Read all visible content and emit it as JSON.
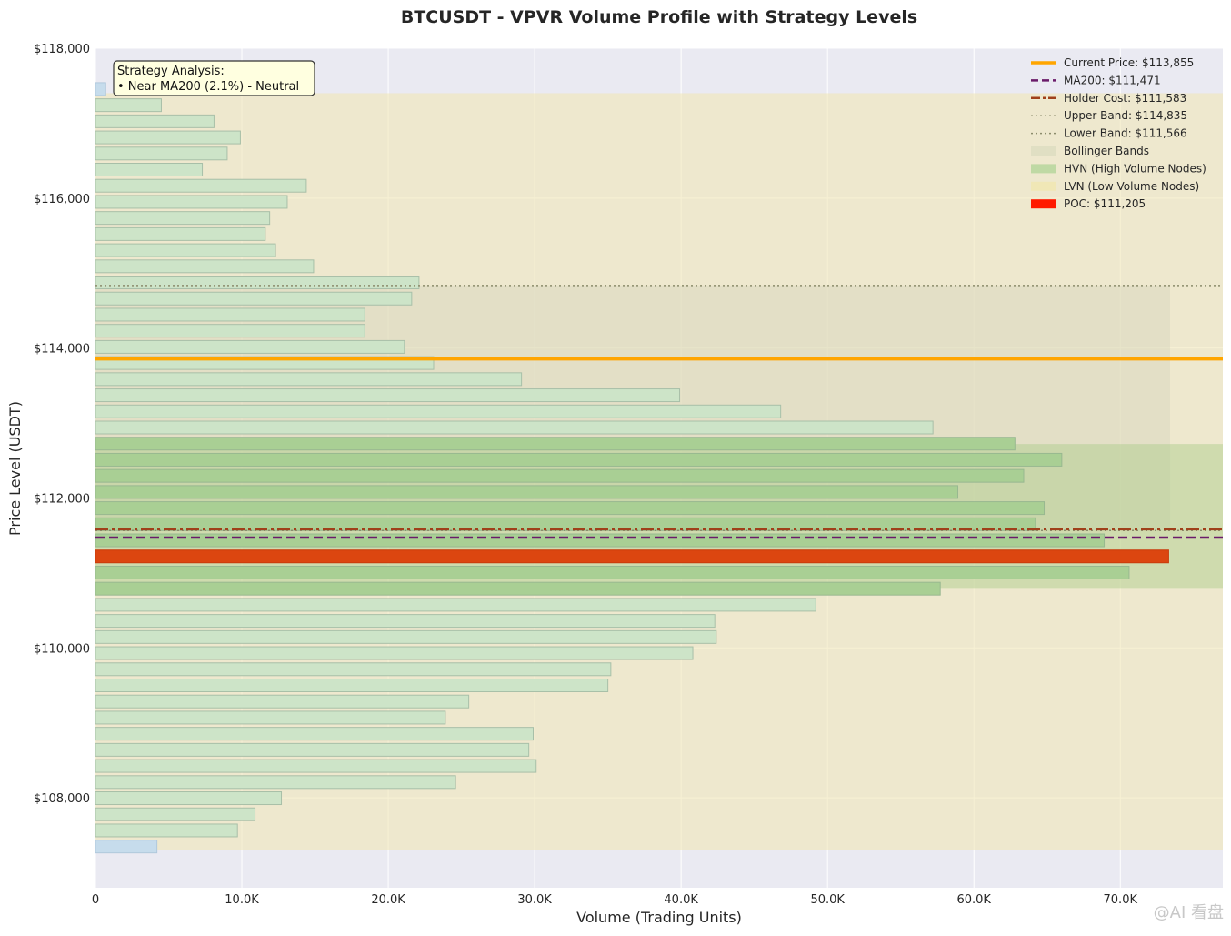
{
  "chart_data": {
    "type": "bar",
    "orientation": "horizontal",
    "title": "BTCUSDT - VPVR Volume Profile with Strategy Levels",
    "xlabel": "Volume (Trading Units)",
    "ylabel": "Price Level (USDT)",
    "xlim": [
      0,
      77000
    ],
    "ylim": [
      106800,
      118000
    ],
    "xticks": [
      0,
      10000,
      20000,
      30000,
      40000,
      50000,
      60000,
      70000
    ],
    "xtick_labels": [
      "0",
      "10.0K",
      "20.0K",
      "30.0K",
      "40.0K",
      "50.0K",
      "60.0K",
      "70.0K"
    ],
    "yticks": [
      108000,
      110000,
      112000,
      114000,
      116000,
      118000
    ],
    "ytick_labels": [
      "$108,000",
      "$110,000",
      "$112,000",
      "$114,000",
      "$116,000",
      "$118,000"
    ],
    "grid": true,
    "legend_position": "top-right",
    "bins": [
      {
        "price": 107350,
        "volume": 4200,
        "kind": "lvn"
      },
      {
        "price": 107565,
        "volume": 9700,
        "kind": "normal"
      },
      {
        "price": 107780,
        "volume": 10900,
        "kind": "normal"
      },
      {
        "price": 107995,
        "volume": 12700,
        "kind": "normal"
      },
      {
        "price": 108210,
        "volume": 24600,
        "kind": "normal"
      },
      {
        "price": 108425,
        "volume": 30100,
        "kind": "normal"
      },
      {
        "price": 108640,
        "volume": 29600,
        "kind": "normal"
      },
      {
        "price": 108855,
        "volume": 29900,
        "kind": "normal"
      },
      {
        "price": 109070,
        "volume": 23900,
        "kind": "normal"
      },
      {
        "price": 109285,
        "volume": 25500,
        "kind": "normal"
      },
      {
        "price": 109500,
        "volume": 35000,
        "kind": "normal"
      },
      {
        "price": 109715,
        "volume": 35200,
        "kind": "normal"
      },
      {
        "price": 109930,
        "volume": 40800,
        "kind": "normal"
      },
      {
        "price": 110145,
        "volume": 42400,
        "kind": "normal"
      },
      {
        "price": 110360,
        "volume": 42300,
        "kind": "normal"
      },
      {
        "price": 110575,
        "volume": 49200,
        "kind": "normal"
      },
      {
        "price": 110790,
        "volume": 57700,
        "kind": "hvn"
      },
      {
        "price": 111005,
        "volume": 70600,
        "kind": "hvn"
      },
      {
        "price": 111220,
        "volume": 73300,
        "kind": "poc"
      },
      {
        "price": 111435,
        "volume": 68900,
        "kind": "hvn"
      },
      {
        "price": 111650,
        "volume": 64200,
        "kind": "hvn"
      },
      {
        "price": 111865,
        "volume": 64800,
        "kind": "hvn"
      },
      {
        "price": 112080,
        "volume": 58900,
        "kind": "hvn"
      },
      {
        "price": 112295,
        "volume": 63400,
        "kind": "hvn"
      },
      {
        "price": 112510,
        "volume": 66000,
        "kind": "hvn"
      },
      {
        "price": 112725,
        "volume": 62800,
        "kind": "hvn"
      },
      {
        "price": 112940,
        "volume": 57200,
        "kind": "normal"
      },
      {
        "price": 113155,
        "volume": 46800,
        "kind": "normal"
      },
      {
        "price": 113370,
        "volume": 39900,
        "kind": "normal"
      },
      {
        "price": 113585,
        "volume": 29100,
        "kind": "normal"
      },
      {
        "price": 113800,
        "volume": 23100,
        "kind": "normal"
      },
      {
        "price": 114015,
        "volume": 21100,
        "kind": "normal"
      },
      {
        "price": 114230,
        "volume": 18400,
        "kind": "normal"
      },
      {
        "price": 114445,
        "volume": 18400,
        "kind": "normal"
      },
      {
        "price": 114660,
        "volume": 21600,
        "kind": "normal"
      },
      {
        "price": 114875,
        "volume": 22100,
        "kind": "normal"
      },
      {
        "price": 115090,
        "volume": 14900,
        "kind": "normal"
      },
      {
        "price": 115305,
        "volume": 12300,
        "kind": "normal"
      },
      {
        "price": 115520,
        "volume": 11600,
        "kind": "normal"
      },
      {
        "price": 115735,
        "volume": 11900,
        "kind": "normal"
      },
      {
        "price": 115950,
        "volume": 13100,
        "kind": "normal"
      },
      {
        "price": 116165,
        "volume": 14400,
        "kind": "normal"
      },
      {
        "price": 116380,
        "volume": 7300,
        "kind": "normal"
      },
      {
        "price": 116595,
        "volume": 9000,
        "kind": "normal"
      },
      {
        "price": 116810,
        "volume": 9900,
        "kind": "normal"
      },
      {
        "price": 117025,
        "volume": 8100,
        "kind": "normal"
      },
      {
        "price": 117240,
        "volume": 4500,
        "kind": "normal"
      },
      {
        "price": 117455,
        "volume": 700,
        "kind": "lvn"
      }
    ],
    "levels": {
      "current_price": 113855,
      "ma200": 111471,
      "holder_cost": 111583,
      "upper_band": 114835,
      "lower_band": 111566,
      "poc": 111205
    },
    "zones": {
      "lvn_zone": [
        107300,
        117400
      ],
      "bollinger_band": [
        111566,
        114835
      ],
      "hvn_zone": [
        110800,
        112720
      ]
    },
    "legend": [
      {
        "label": "Current Price: $113,855",
        "key": "current",
        "color": "#ffa500"
      },
      {
        "label": "MA200: $111,471",
        "key": "ma200",
        "color": "#6a1b6a"
      },
      {
        "label": "Holder Cost: $111,583",
        "key": "holder",
        "color": "#a0401a"
      },
      {
        "label": "Upper Band: $114,835",
        "key": "upper",
        "color": "#8c8c6c"
      },
      {
        "label": "Lower Band: $111,566",
        "key": "lower",
        "color": "#8c8c6c"
      },
      {
        "label": "Bollinger Bands",
        "key": "bollinger",
        "color": "#dcdcc0"
      },
      {
        "label": "HVN (High Volume Nodes)",
        "key": "hvn",
        "color": "#b3d49a"
      },
      {
        "label": "LVN (Low Volume Nodes)",
        "key": "lvn",
        "color": "#f0e6b0"
      },
      {
        "label": "POC: $111,205",
        "key": "poc",
        "color": "#ff1a00"
      }
    ],
    "annotation": {
      "title": "Strategy Analysis:",
      "line": "• Near MA200 (2.1%) - Neutral"
    }
  },
  "watermark": "@AI 看盘"
}
